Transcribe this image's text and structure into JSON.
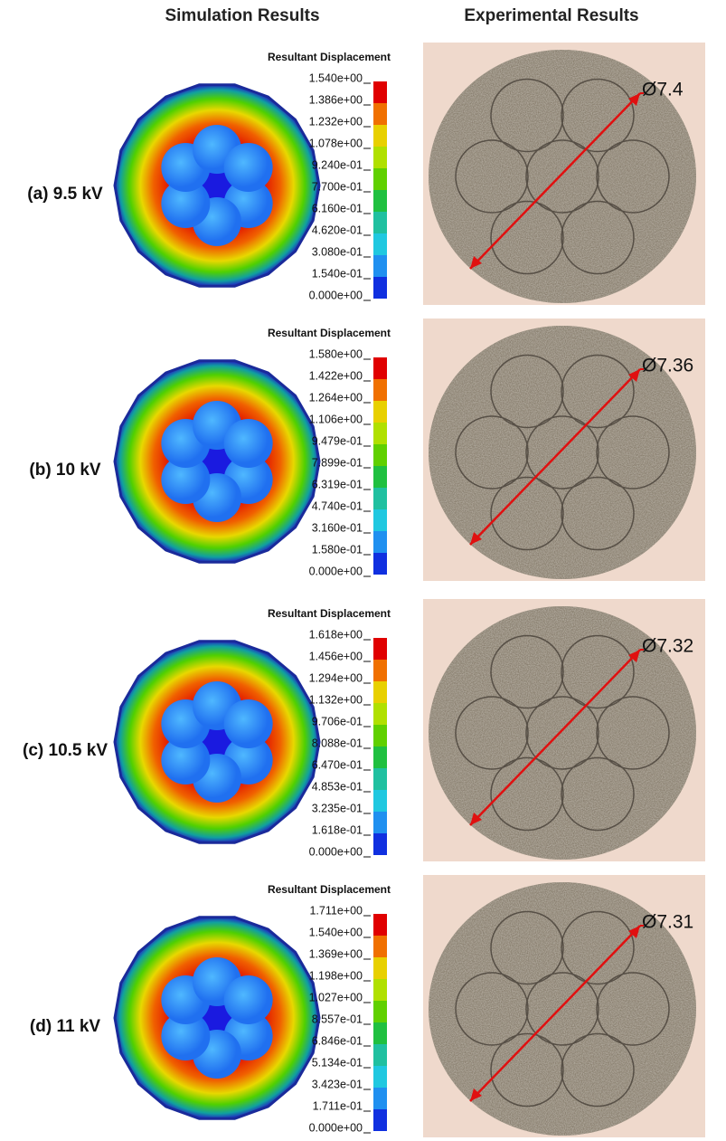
{
  "header": {
    "simulation": "Simulation Results",
    "experimental": "Experimental Results"
  },
  "rows": [
    {
      "label": "(a) 9.5 kV",
      "legend_title": "Resultant Displacement",
      "ticks": [
        "1.540e+00",
        "1.386e+00",
        "1.232e+00",
        "1.078e+00",
        "9.240e-01",
        "7.700e-01",
        "6.160e-01",
        "4.620e-01",
        "3.080e-01",
        "1.540e-01",
        "0.000e+00"
      ],
      "diameter": "Ø7.4"
    },
    {
      "label": "(b) 10 kV",
      "legend_title": "Resultant Displacement",
      "ticks": [
        "1.580e+00",
        "1.422e+00",
        "1.264e+00",
        "1.106e+00",
        "9.479e-01",
        "7.899e-01",
        "6.319e-01",
        "4.740e-01",
        "3.160e-01",
        "1.580e-01",
        "0.000e+00"
      ],
      "diameter": "Ø7.36"
    },
    {
      "label": "(c) 10.5 kV",
      "legend_title": "Resultant Displacement",
      "ticks": [
        "1.618e+00",
        "1.456e+00",
        "1.294e+00",
        "1.132e+00",
        "9.706e-01",
        "8.088e-01",
        "6.470e-01",
        "4.853e-01",
        "3.235e-01",
        "1.618e-01",
        "0.000e+00"
      ],
      "diameter": "Ø7.32"
    },
    {
      "label": "(d) 11 kV",
      "legend_title": "Resultant Displacement",
      "ticks": [
        "1.711e+00",
        "1.540e+00",
        "1.369e+00",
        "1.198e+00",
        "1.027e+00",
        "8.557e-01",
        "6.846e-01",
        "5.134e-01",
        "3.423e-01",
        "1.711e-01",
        "0.000e+00"
      ],
      "diameter": "Ø7.31"
    }
  ]
}
